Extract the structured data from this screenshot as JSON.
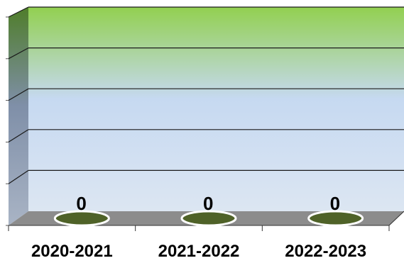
{
  "chart_data": {
    "type": "bar",
    "categories": [
      "2020-2021",
      "2021-2022",
      "2022-2023"
    ],
    "values": [
      0,
      0,
      0
    ],
    "data_labels": [
      "0",
      "0",
      "0"
    ],
    "title": "",
    "xlabel": "",
    "ylabel": "",
    "grid": true,
    "three_d": true,
    "colors": {
      "plot_top": "#92d050",
      "plot_mid": "#c6d9f1",
      "plot_bottom": "#dce6f2",
      "floor": "#8c8c8c",
      "bar_fill": "#4f6228",
      "bar_outline": "#ffffff",
      "gridline": "#1a1a1a"
    }
  }
}
